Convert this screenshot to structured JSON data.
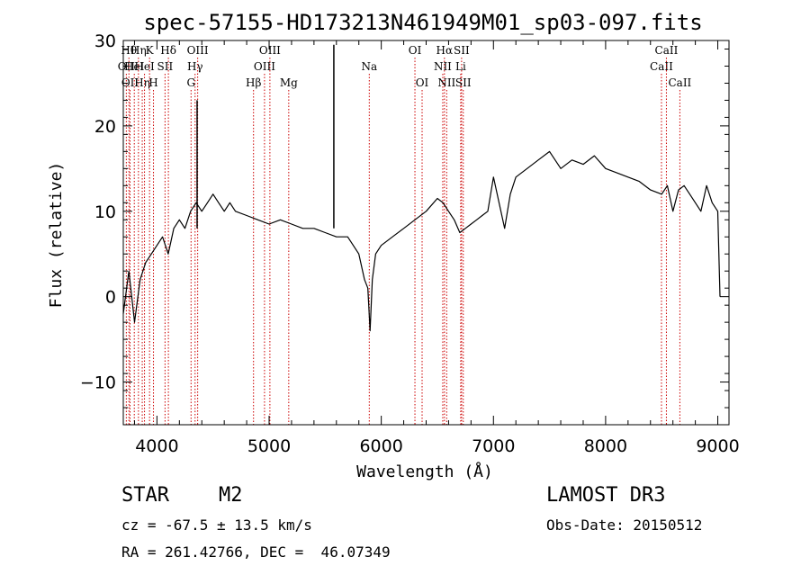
{
  "chart_data": {
    "type": "line",
    "title": "spec-57155-HD173213N461949M01_sp03-097.fits",
    "xlabel": "Wavelength (Å)",
    "ylabel": "Flux (relative)",
    "xlim": [
      3700,
      9100
    ],
    "ylim": [
      -15,
      30
    ],
    "xticks": [
      4000,
      5000,
      6000,
      7000,
      8000,
      9000
    ],
    "yticks": [
      -10,
      0,
      10,
      20,
      30
    ],
    "grid": false,
    "line_color": "#000000",
    "marker_color": "#cc0000",
    "series": [
      {
        "x": [
          3700,
          3750,
          3800,
          3850,
          3900,
          3950,
          4000,
          4050,
          4100,
          4150,
          4200,
          4250,
          4300,
          4350,
          4400,
          4450,
          4500,
          4550,
          4600,
          4650,
          4700,
          4800,
          4900,
          5000,
          5100,
          5200,
          5300,
          5400,
          5500,
          5600,
          5700,
          5800,
          5850,
          5880,
          5900,
          5920,
          5950,
          6000,
          6100,
          6200,
          6300,
          6400,
          6500,
          6550,
          6600,
          6650,
          6700,
          6750,
          6800,
          6850,
          6900,
          6950,
          7000,
          7050,
          7100,
          7150,
          7200,
          7300,
          7400,
          7500,
          7600,
          7700,
          7800,
          7900,
          8000,
          8100,
          8200,
          8300,
          8400,
          8500,
          8550,
          8600,
          8650,
          8700,
          8750,
          8800,
          8850,
          8900,
          8950,
          9000,
          9020
        ],
        "y": [
          -2,
          3,
          -3,
          2,
          4,
          5,
          6,
          7,
          5,
          8,
          9,
          8,
          10,
          11,
          10,
          11,
          12,
          11,
          10,
          11,
          10,
          9.5,
          9,
          8.5,
          9,
          8.5,
          8,
          8,
          7.5,
          7,
          7,
          5,
          2,
          1,
          -4,
          2,
          5,
          6,
          7,
          8,
          9,
          10,
          11.5,
          11,
          10,
          9,
          7.5,
          8,
          8.5,
          9,
          9.5,
          10,
          14,
          11,
          8,
          12,
          14,
          15,
          16,
          17,
          15,
          16,
          15.5,
          16.5,
          15,
          14.5,
          14,
          13.5,
          12.5,
          12,
          13,
          10,
          12.5,
          13,
          12,
          11,
          10,
          13,
          11,
          10,
          0
        ]
      }
    ],
    "spikes": [
      {
        "x": 5577,
        "y": 29.5
      },
      {
        "x": 4358,
        "y": 23
      }
    ],
    "line_markers": [
      {
        "x": 3727,
        "row": 1,
        "label": "OII"
      },
      {
        "x": 3750,
        "row": 0,
        "label": "Hθ"
      },
      {
        "x": 3760,
        "row": 2,
        "label": "OII"
      },
      {
        "x": 3798,
        "row": 1,
        "label": "HeI"
      },
      {
        "x": 3835,
        "row": 0,
        "label": "Hη"
      },
      {
        "x": 3869,
        "row": 2,
        "label": "Hη"
      },
      {
        "x": 3889,
        "row": 1,
        "label": "HeI"
      },
      {
        "x": 3934,
        "row": 0,
        "label": "K"
      },
      {
        "x": 3969,
        "row": 2,
        "label": "H"
      },
      {
        "x": 4072,
        "row": 1,
        "label": "SII"
      },
      {
        "x": 4102,
        "row": 0,
        "label": "Hδ"
      },
      {
        "x": 4304,
        "row": 2,
        "label": "G"
      },
      {
        "x": 4340,
        "row": 1,
        "label": "Hγ"
      },
      {
        "x": 4363,
        "row": 0,
        "label": "OIII"
      },
      {
        "x": 4861,
        "row": 2,
        "label": "Hβ"
      },
      {
        "x": 4959,
        "row": 1,
        "label": "OIII"
      },
      {
        "x": 5007,
        "row": 0,
        "label": "OIII"
      },
      {
        "x": 5175,
        "row": 2,
        "label": "Mg"
      },
      {
        "x": 5893,
        "row": 1,
        "label": "Na"
      },
      {
        "x": 6300,
        "row": 0,
        "label": "OI"
      },
      {
        "x": 6364,
        "row": 2,
        "label": "OI"
      },
      {
        "x": 6548,
        "row": 1,
        "label": "NII"
      },
      {
        "x": 6563,
        "row": 0,
        "label": "Hα"
      },
      {
        "x": 6583,
        "row": 2,
        "label": "NII"
      },
      {
        "x": 6708,
        "row": 1,
        "label": "Li"
      },
      {
        "x": 6716,
        "row": 0,
        "label": "SII"
      },
      {
        "x": 6731,
        "row": 2,
        "label": "SII"
      },
      {
        "x": 8498,
        "row": 1,
        "label": "CaII"
      },
      {
        "x": 8542,
        "row": 0,
        "label": "CaII"
      },
      {
        "x": 8662,
        "row": 2,
        "label": "CaII"
      }
    ]
  },
  "info": {
    "object_class": "STAR",
    "subclass": "M2",
    "survey": "LAMOST DR3",
    "cz": "cz = -67.5 ± 13.5 km/s",
    "obs_date": "Obs-Date: 20150512",
    "coords": "RA = 261.42766, DEC =  46.07349"
  }
}
